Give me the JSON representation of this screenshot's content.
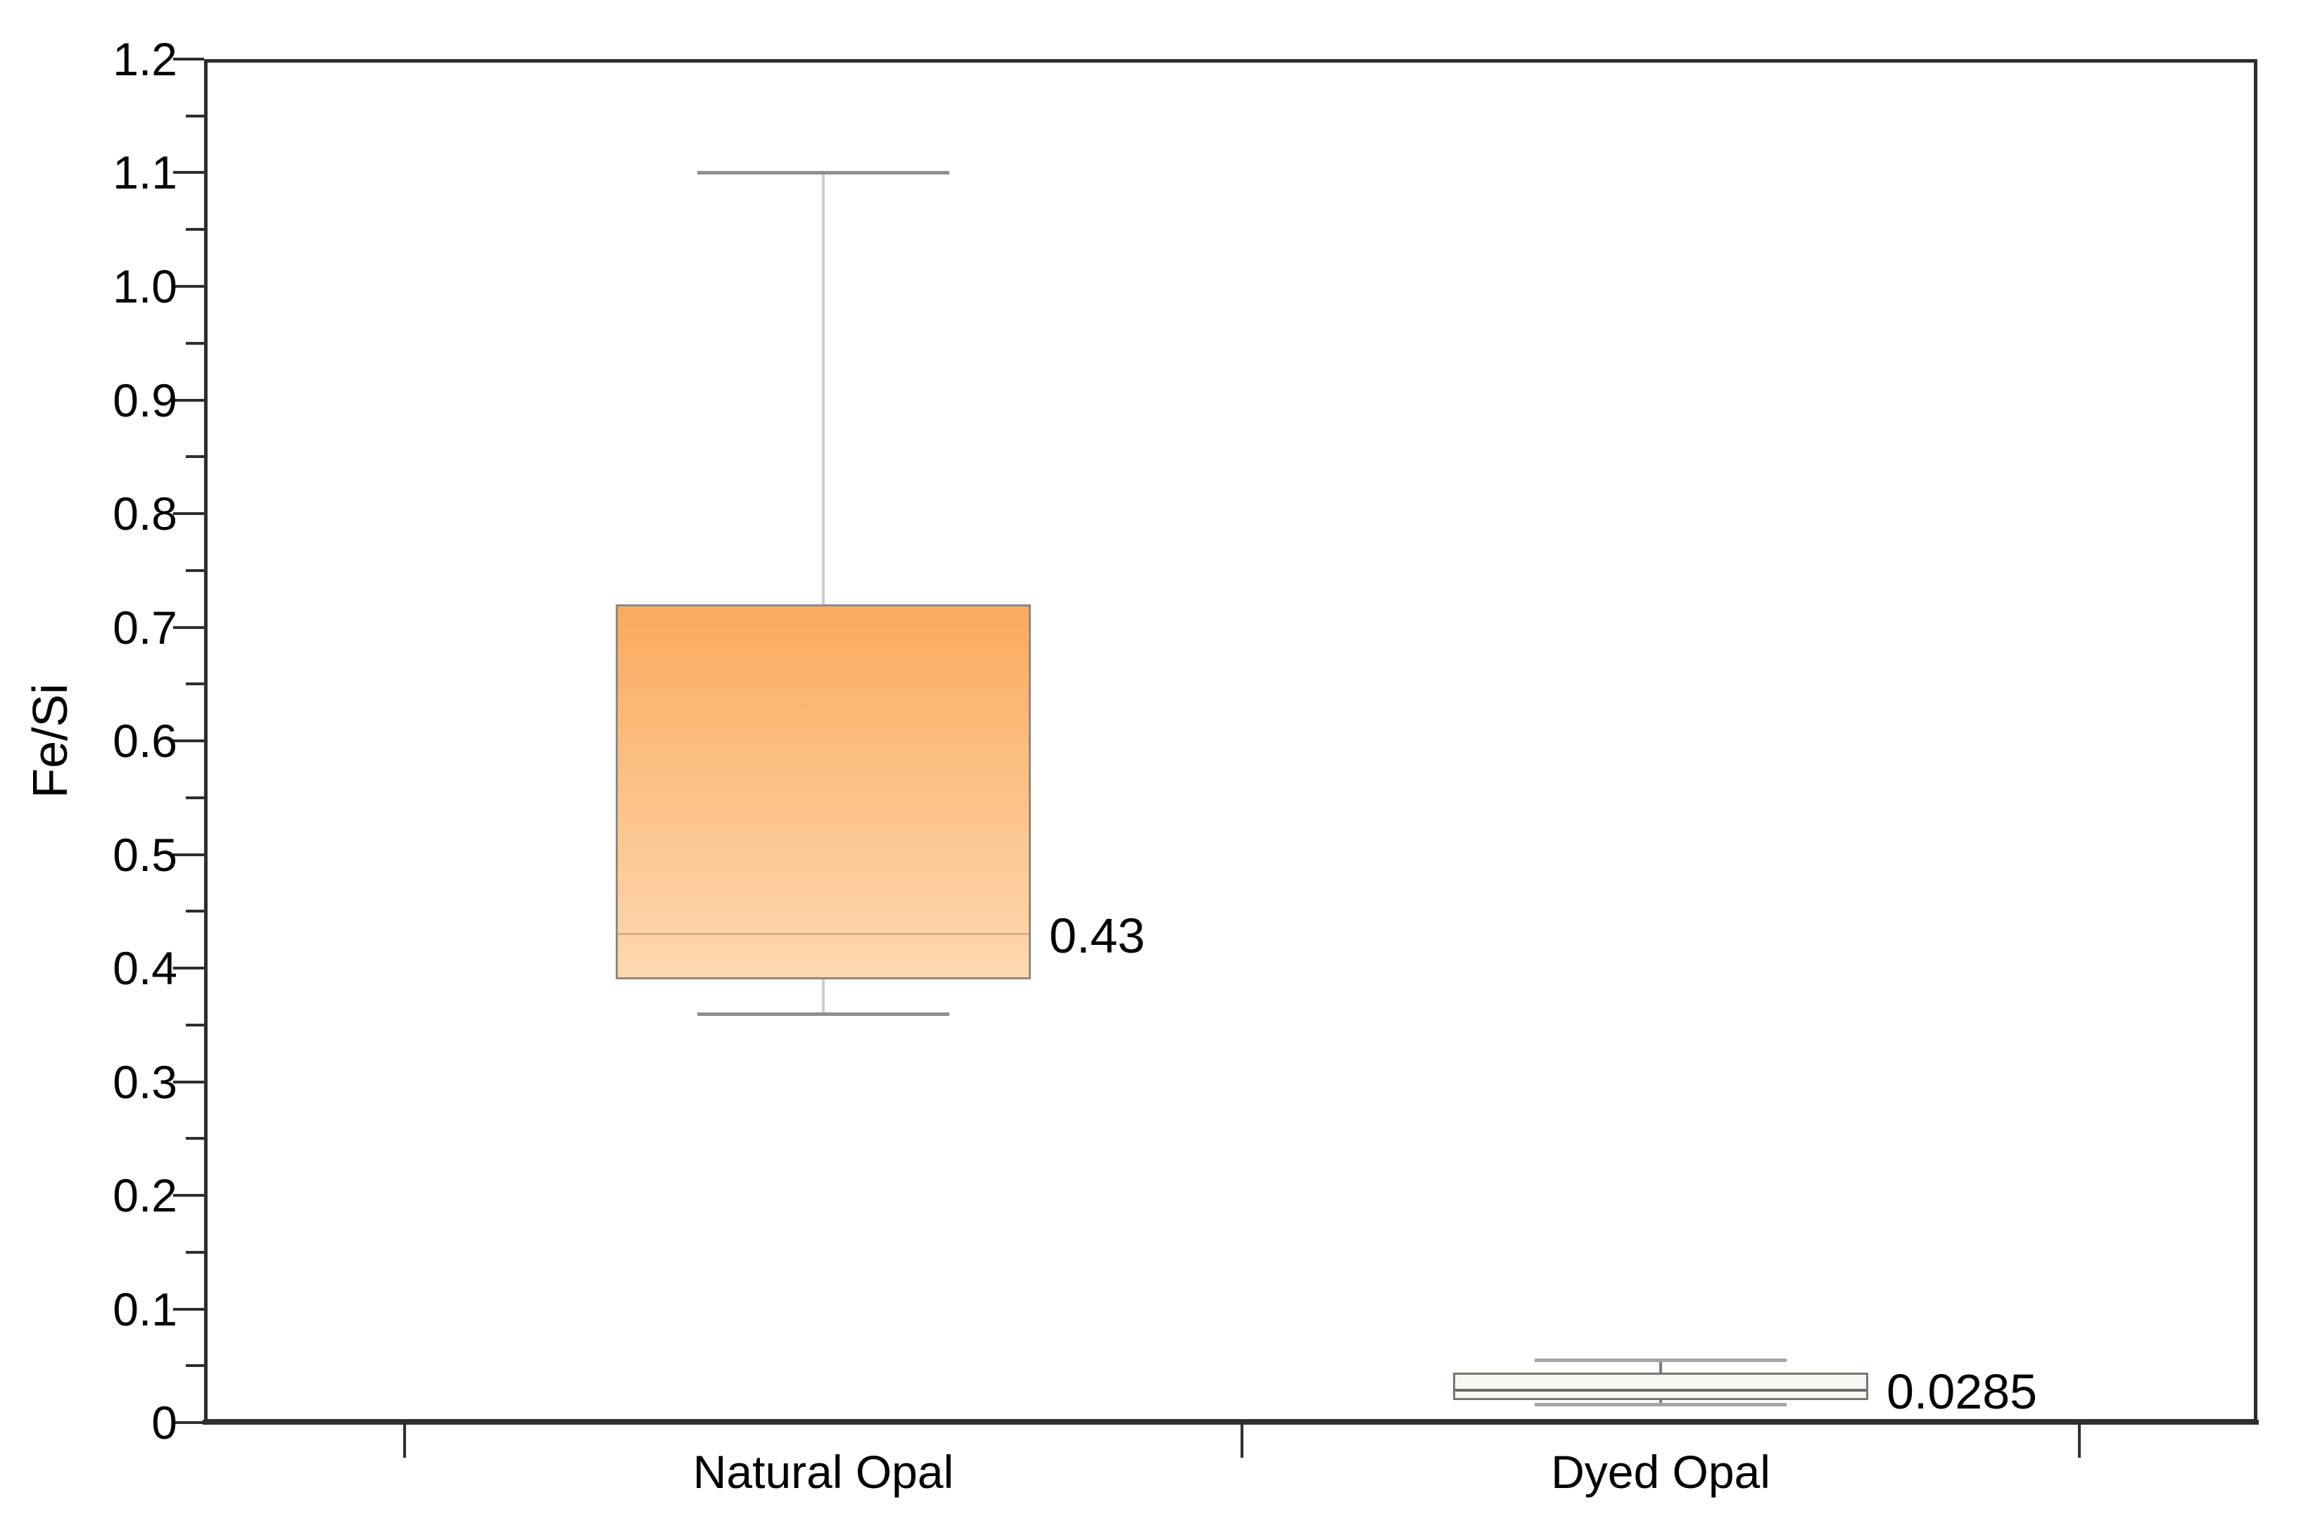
{
  "labels": {
    "y_axis_title": "Fe/Si"
  },
  "colors": {
    "background": "#ffffff",
    "frame": "#2e2e2c",
    "text": "#000000",
    "natural_box_gradient_top": "#faaa5e",
    "natural_box_gradient_bottom": "#fdd9b0",
    "natural_box_border": "#8f897f",
    "natural_median_line": "#dcab7e",
    "natural_whisker_line": "#cdcdcd",
    "natural_whisker_cap": "#8f8f8f",
    "dyed_box_fill": "#f8f6f0",
    "dyed_box_border": "#77756f",
    "dyed_median_line": "#6b6b66",
    "dyed_whisker_line": "#7d7d7d",
    "dyed_whisker_cap": "#a5a5a5"
  },
  "chart_data": {
    "type": "boxplot",
    "title": "",
    "xlabel": "",
    "ylabel": "Fe/Si",
    "ylim": [
      0,
      1.2
    ],
    "y_major_tick_step": 0.1,
    "y_minor_tick_step": 0.05,
    "grid": false,
    "legend_position": "none",
    "y_tick_labels": [
      "0",
      "0.1",
      "0.2",
      "0.3",
      "0.4",
      "0.5",
      "0.6",
      "0.7",
      "0.8",
      "0.9",
      "1.0",
      "1.1",
      "1.2"
    ],
    "categories": [
      "Natural Opal",
      "Dyed Opal"
    ],
    "series": [
      {
        "name": "Natural Opal",
        "whisker_low": 0.36,
        "q1": 0.39,
        "median": 0.43,
        "q3": 0.72,
        "whisker_high": 1.1,
        "median_label": "0.43",
        "style": "orange-gradient"
      },
      {
        "name": "Dyed Opal",
        "whisker_low": 0.016,
        "q1": 0.02,
        "median": 0.0285,
        "q3": 0.044,
        "whisker_high": 0.055,
        "median_label": "0.0285",
        "style": "cream"
      }
    ]
  }
}
